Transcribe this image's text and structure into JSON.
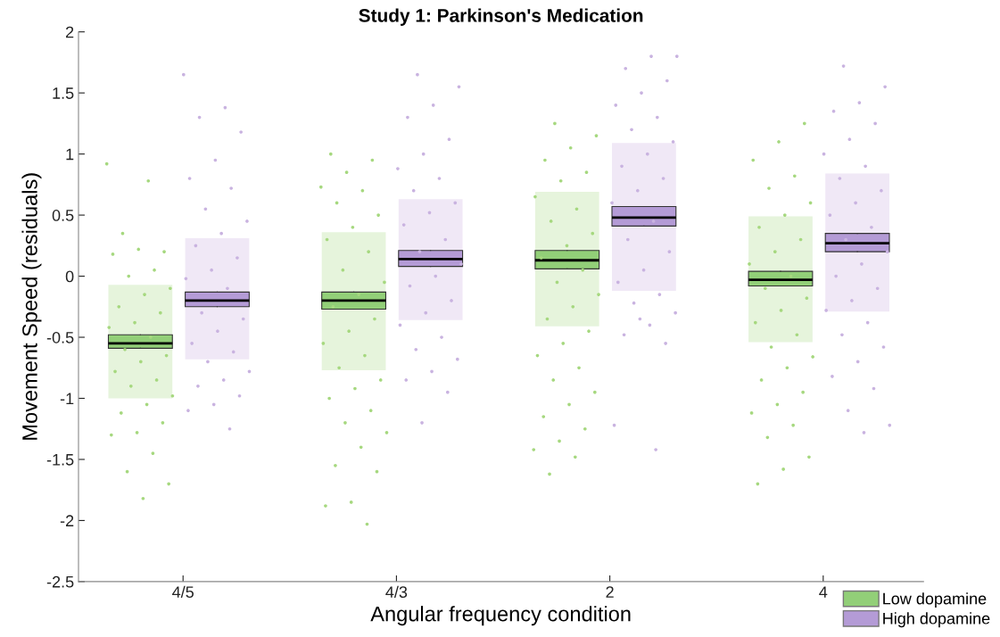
{
  "chart_data": {
    "type": "scatter",
    "title": "Study 1: Parkinson's Medication",
    "xlabel": "Angular frequency condition",
    "ylabel": "Movement Speed (residuals)",
    "categories": [
      "4/5",
      "4/3",
      "2",
      "4"
    ],
    "ylim": [
      -2.5,
      2
    ],
    "yticks": [
      -2.5,
      -2,
      -1.5,
      -1,
      -0.5,
      0,
      0.5,
      1,
      1.5,
      2
    ],
    "grid": false,
    "legend": "bottom right",
    "marker": "circle",
    "series": [
      {
        "type": "bar",
        "color": "#e6f4dc",
        "base": [
          -1.0,
          -0.77,
          -0.41,
          -0.54
        ],
        "values": [
          0.93,
          1.13,
          1.1,
          1.03
        ]
      },
      {
        "type": "bar",
        "color": "#f0e8f6",
        "base": [
          -0.68,
          -0.36,
          -0.12,
          -0.29
        ],
        "values": [
          0.99,
          0.99,
          1.21,
          1.13
        ]
      },
      {
        "color": "#a6d87f",
        "x": [
          "4/5",
          "4/5",
          "4/5",
          "4/5",
          "4/5",
          "4/5",
          "4/5",
          "4/5",
          "4/5",
          "4/5",
          "4/5",
          "4/5",
          "4/5",
          "4/5",
          "4/5",
          "4/5",
          "4/5",
          "4/5",
          "4/5",
          "4/5",
          "4/5",
          "4/5",
          "4/5",
          "4/5",
          "4/5",
          "4/5",
          "4/5",
          "4/5",
          "4/5",
          "4/5",
          "4/5",
          "4/3",
          "4/3",
          "4/3",
          "4/3",
          "4/3",
          "4/3",
          "4/3",
          "4/3",
          "4/3",
          "4/3",
          "4/3",
          "4/3",
          "4/3",
          "4/3",
          "4/3",
          "4/3",
          "4/3",
          "4/3",
          "4/3",
          "4/3",
          "4/3",
          "4/3",
          "4/3",
          "4/3",
          "4/3",
          "4/3",
          "4/3",
          "4/3",
          "4/3",
          "4/3",
          "4/3",
          "2",
          "2",
          "2",
          "2",
          "2",
          "2",
          "2",
          "2",
          "2",
          "2",
          "2",
          "2",
          "2",
          "2",
          "2",
          "2",
          "2",
          "2",
          "2",
          "2",
          "2",
          "2",
          "2",
          "2",
          "2",
          "2",
          "2",
          "2",
          "2",
          "2",
          "4",
          "4",
          "4",
          "4",
          "4",
          "4",
          "4",
          "4",
          "4",
          "4",
          "4",
          "4",
          "4",
          "4",
          "4",
          "4",
          "4",
          "4",
          "4",
          "4",
          "4",
          "4",
          "4",
          "4",
          "4",
          "4",
          "4",
          "4",
          "4"
        ],
        "values": [
          0.92,
          0.78,
          0.35,
          0.2,
          0.22,
          0.18,
          0.05,
          0.0,
          -0.1,
          -0.15,
          -0.25,
          -0.3,
          -0.38,
          -0.42,
          -0.5,
          -0.6,
          -0.65,
          -0.7,
          -0.78,
          -0.85,
          -0.9,
          -0.98,
          -1.05,
          -1.12,
          -1.2,
          -1.28,
          -1.3,
          -1.45,
          -1.6,
          -1.7,
          -1.82,
          1.0,
          0.95,
          0.85,
          0.73,
          0.7,
          0.6,
          0.5,
          0.4,
          0.3,
          0.2,
          0.05,
          -0.05,
          -0.15,
          -0.25,
          -0.35,
          -0.45,
          -0.55,
          -0.65,
          -0.75,
          -0.85,
          -0.92,
          -1.0,
          -1.1,
          -1.2,
          -1.28,
          -1.4,
          -1.55,
          -1.6,
          -1.85,
          -1.88,
          -2.03,
          1.25,
          1.15,
          1.05,
          0.95,
          0.85,
          0.78,
          0.65,
          0.55,
          0.45,
          0.35,
          0.25,
          0.15,
          0.05,
          -0.05,
          -0.15,
          -0.25,
          -0.35,
          -0.45,
          -0.55,
          -0.65,
          -0.75,
          -0.85,
          -0.95,
          -1.05,
          -1.15,
          -1.25,
          -1.35,
          -1.42,
          -1.48,
          -1.62,
          1.25,
          1.1,
          0.95,
          0.82,
          0.72,
          0.6,
          0.5,
          0.4,
          0.3,
          0.2,
          0.1,
          0.0,
          -0.1,
          -0.18,
          -0.28,
          -0.38,
          -0.48,
          -0.58,
          -0.66,
          -0.75,
          -0.85,
          -0.95,
          -1.05,
          -1.12,
          -1.22,
          -1.32,
          -1.48,
          -1.58,
          -1.7
        ]
      },
      {
        "color": "#c9b3e0",
        "x": [
          "4/5",
          "4/5",
          "4/5",
          "4/5",
          "4/5",
          "4/5",
          "4/5",
          "4/5",
          "4/5",
          "4/5",
          "4/5",
          "4/5",
          "4/5",
          "4/5",
          "4/5",
          "4/5",
          "4/5",
          "4/5",
          "4/5",
          "4/5",
          "4/5",
          "4/5",
          "4/5",
          "4/5",
          "4/5",
          "4/5",
          "4/5",
          "4/5",
          "4/3",
          "4/3",
          "4/3",
          "4/3",
          "4/3",
          "4/3",
          "4/3",
          "4/3",
          "4/3",
          "4/3",
          "4/3",
          "4/3",
          "4/3",
          "4/3",
          "4/3",
          "4/3",
          "4/3",
          "4/3",
          "4/3",
          "4/3",
          "4/3",
          "4/3",
          "4/3",
          "4/3",
          "4/3",
          "4/3",
          "4/3",
          "2",
          "2",
          "2",
          "2",
          "2",
          "2",
          "2",
          "2",
          "2",
          "2",
          "2",
          "2",
          "2",
          "2",
          "2",
          "2",
          "2",
          "2",
          "2",
          "2",
          "2",
          "2",
          "2",
          "2",
          "2",
          "2",
          "2",
          "2",
          "4",
          "4",
          "4",
          "4",
          "4",
          "4",
          "4",
          "4",
          "4",
          "4",
          "4",
          "4",
          "4",
          "4",
          "4",
          "4",
          "4",
          "4",
          "4",
          "4",
          "4",
          "4",
          "4",
          "4",
          "4",
          "4",
          "4",
          "4",
          "4"
        ],
        "values": [
          1.65,
          1.38,
          1.3,
          1.18,
          0.95,
          0.8,
          0.72,
          0.55,
          0.45,
          0.35,
          0.25,
          0.15,
          0.05,
          -0.02,
          -0.1,
          -0.3,
          -0.35,
          -0.45,
          -0.55,
          -0.62,
          -0.7,
          -0.78,
          -0.85,
          -0.9,
          -0.98,
          -1.05,
          -1.1,
          -1.25,
          1.65,
          1.55,
          1.4,
          1.3,
          1.12,
          1.0,
          0.88,
          0.8,
          0.7,
          0.6,
          0.52,
          0.42,
          0.3,
          0.2,
          0.1,
          0.0,
          -0.08,
          -0.2,
          -0.3,
          -0.4,
          -0.5,
          -0.6,
          -0.68,
          -0.78,
          -0.85,
          -0.95,
          -1.2,
          1.8,
          1.8,
          1.7,
          1.6,
          1.5,
          1.4,
          1.3,
          1.2,
          1.1,
          1.0,
          0.9,
          0.8,
          0.7,
          0.6,
          0.45,
          0.3,
          0.2,
          0.05,
          -0.05,
          -0.15,
          -0.22,
          -0.3,
          -0.4,
          -0.48,
          -0.55,
          -0.35,
          -1.22,
          -1.42,
          1.72,
          1.55,
          1.42,
          1.35,
          1.25,
          1.12,
          1.0,
          0.9,
          0.8,
          0.7,
          0.6,
          0.5,
          0.4,
          0.3,
          0.2,
          0.1,
          0.0,
          -0.1,
          -0.2,
          -0.28,
          -0.38,
          -0.48,
          -0.58,
          -0.7,
          -0.82,
          -0.92,
          -1.1,
          -1.22,
          -1.28
        ]
      },
      {
        "type": "box",
        "name": "Low dopamine",
        "color": "#92cf78",
        "boxes": [
          {
            "low": -0.59,
            "q1": -0.59,
            "median": -0.55,
            "q3": -0.48,
            "high": -0.48
          },
          {
            "low": -0.27,
            "q1": -0.27,
            "median": -0.2,
            "q3": -0.13,
            "high": -0.13
          },
          {
            "low": 0.06,
            "q1": 0.06,
            "median": 0.13,
            "q3": 0.21,
            "high": 0.21
          },
          {
            "low": -0.08,
            "q1": -0.08,
            "median": -0.03,
            "q3": 0.04,
            "high": 0.04
          }
        ]
      },
      {
        "type": "box",
        "name": "High dopamine",
        "color": "#b49bd6",
        "boxes": [
          {
            "low": -0.25,
            "q1": -0.25,
            "median": -0.2,
            "q3": -0.13,
            "high": -0.13
          },
          {
            "low": 0.08,
            "q1": 0.08,
            "median": 0.14,
            "q3": 0.21,
            "high": 0.21
          },
          {
            "low": 0.41,
            "q1": 0.41,
            "median": 0.48,
            "q3": 0.57,
            "high": 0.57
          },
          {
            "low": 0.2,
            "q1": 0.2,
            "median": 0.27,
            "q3": 0.35,
            "high": 0.35
          }
        ]
      }
    ]
  }
}
